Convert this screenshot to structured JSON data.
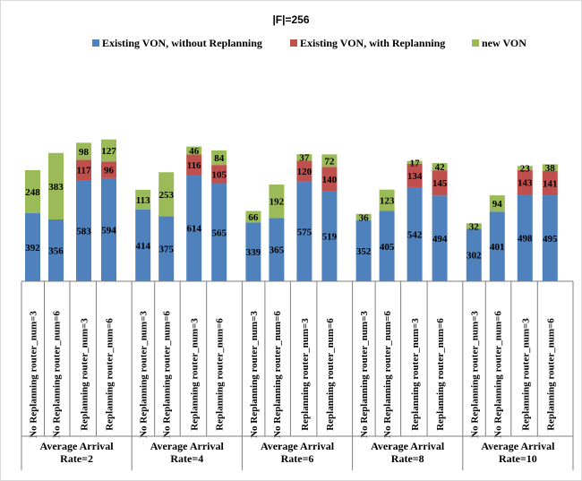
{
  "chart_data": {
    "type": "bar",
    "stacked": true,
    "title": "|F|=256",
    "legend": "top",
    "grid": false,
    "ylim": [
      0,
      1000
    ],
    "series": [
      {
        "name": "Existing VON, without Replanning",
        "color": "#4f81bd",
        "values": [
          392,
          356,
          583,
          594,
          414,
          375,
          614,
          565,
          339,
          365,
          575,
          519,
          352,
          405,
          542,
          494,
          302,
          401,
          498,
          495
        ]
      },
      {
        "name": "Existing VON, with Replanning",
        "color": "#c0504d",
        "values": [
          0,
          0,
          117,
          96,
          0,
          0,
          116,
          105,
          0,
          0,
          120,
          140,
          0,
          0,
          134,
          145,
          0,
          0,
          143,
          141
        ]
      },
      {
        "name": "new VON",
        "color": "#9bbb59",
        "values": [
          248,
          383,
          98,
          127,
          113,
          253,
          46,
          84,
          66,
          192,
          37,
          72,
          36,
          123,
          17,
          42,
          32,
          94,
          23,
          38
        ]
      }
    ],
    "groups": [
      {
        "label_line1": "Average Arrival",
        "label_line2": "Rate=2",
        "categories": [
          "No Replanning router_num=3",
          "No Replanning router_num=6",
          "Replanning router_num=3",
          "Replanning router_num=6"
        ]
      },
      {
        "label_line1": "Average Arrival",
        "label_line2": "Rate=4",
        "categories": [
          "No Replanning router_num=3",
          "No Replanning router_num=6",
          "Replanning router_num=3",
          "Replanning router_num=6"
        ]
      },
      {
        "label_line1": "Average Arrival",
        "label_line2": "Rate=6",
        "categories": [
          "No Replanning router_num=3",
          "No Replanning router_num=6",
          "Replanning router_num=3",
          "Replanning router_num=6"
        ]
      },
      {
        "label_line1": "Average Arrival",
        "label_line2": "Rate=8",
        "categories": [
          "No Replanning router_num=3",
          "No Replanning router_num=6",
          "Replanning router_num=3",
          "Replanning router_num=6"
        ]
      },
      {
        "label_line1": "Average Arrival",
        "label_line2": "Rate=10",
        "categories": [
          "No Replanning router_num=3",
          "No Replanning router_num=6",
          "Replanning router_num=3",
          "Replanning router_num=6"
        ]
      }
    ]
  }
}
